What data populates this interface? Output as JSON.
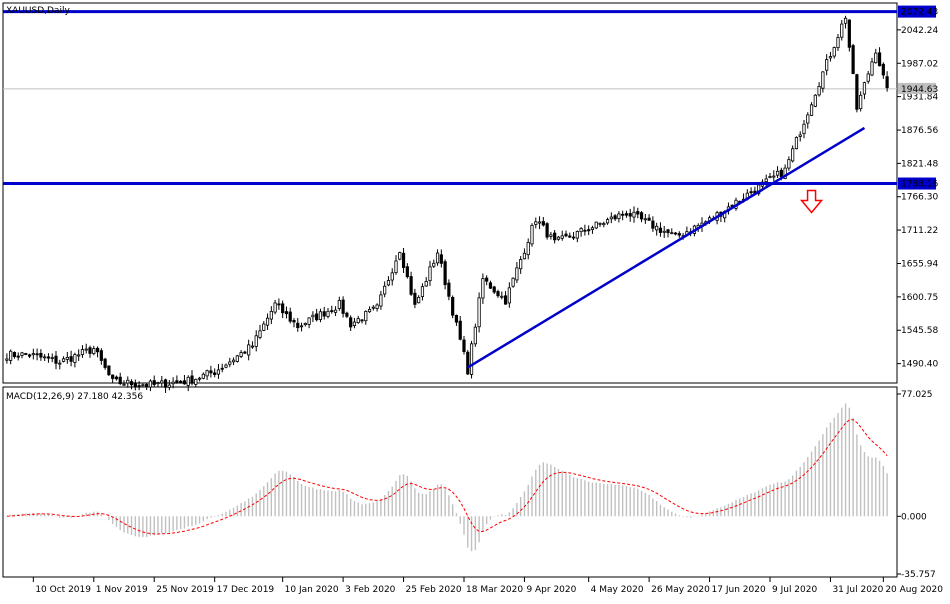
{
  "chart_data": [
    {
      "type": "candlestick",
      "title": "XAUUSD,Daily",
      "price_axis": {
        "ticks": [
          "2042.24",
          "1987.02",
          "1931.84",
          "1876.56",
          "1821.48",
          "1766.30",
          "1711.22",
          "1655.94",
          "1600.75",
          "1545.58",
          "1490.40"
        ],
        "tick_values": [
          2042.24,
          1987.02,
          1931.84,
          1876.56,
          1821.48,
          1766.3,
          1711.22,
          1655.94,
          1600.75,
          1545.58,
          1490.4
        ]
      },
      "price_range": [
        1460.0,
        2085.0
      ],
      "current_price_label": "1944.63",
      "current_price": 1944.63,
      "horizontal_levels": [
        {
          "label": "2072.43",
          "value": 2072.43,
          "color": "#0000cc"
        },
        {
          "label": "1788.16",
          "value": 1788.16,
          "color": "#0000cc"
        }
      ],
      "trendline": {
        "color": "#0000cc",
        "start": {
          "date": "2020-03-19",
          "price": 1484.0
        },
        "end": {
          "date": "2020-08-13",
          "price": 1880.0
        }
      },
      "arrow": {
        "direction": "down",
        "color": "#ff0000",
        "date": "2020-07-24",
        "price": 1780.0
      },
      "x_axis": {
        "tick_labels": [
          "10 Oct 2019",
          "1 Nov 2019",
          "25 Nov 2019",
          "17 Dec 2019",
          "10 Jan 2020",
          "3 Feb 2020",
          "25 Feb 2020",
          "18 Mar 2020",
          "9 Apr 2020",
          "4 May 2020",
          "26 May 2020",
          "17 Jun 2020",
          "9 Jul 2020",
          "31 Jul 2020",
          "20 Aug 2020"
        ]
      },
      "ohlc_anchor_closes": [
        {
          "date": "2019-10-09",
          "close": 1505
        },
        {
          "date": "2019-10-21",
          "close": 1493
        },
        {
          "date": "2019-11-01",
          "close": 1515
        },
        {
          "date": "2019-11-08",
          "close": 1460
        },
        {
          "date": "2019-11-25",
          "close": 1455
        },
        {
          "date": "2019-12-06",
          "close": 1462
        },
        {
          "date": "2019-12-17",
          "close": 1477
        },
        {
          "date": "2019-12-31",
          "close": 1520
        },
        {
          "date": "2020-01-08",
          "close": 1588
        },
        {
          "date": "2020-01-16",
          "close": 1552
        },
        {
          "date": "2020-01-31",
          "close": 1588
        },
        {
          "date": "2020-02-05",
          "close": 1556
        },
        {
          "date": "2020-02-14",
          "close": 1582
        },
        {
          "date": "2020-02-24",
          "close": 1680
        },
        {
          "date": "2020-02-28",
          "close": 1585
        },
        {
          "date": "2020-03-09",
          "close": 1675
        },
        {
          "date": "2020-03-19",
          "close": 1480
        },
        {
          "date": "2020-03-25",
          "close": 1630
        },
        {
          "date": "2020-04-02",
          "close": 1595
        },
        {
          "date": "2020-04-14",
          "close": 1730
        },
        {
          "date": "2020-04-21",
          "close": 1690
        },
        {
          "date": "2020-05-18",
          "close": 1740
        },
        {
          "date": "2020-06-04",
          "close": 1700
        },
        {
          "date": "2020-06-17",
          "close": 1728
        },
        {
          "date": "2020-07-01",
          "close": 1770
        },
        {
          "date": "2020-07-15",
          "close": 1810
        },
        {
          "date": "2020-07-27",
          "close": 1940
        },
        {
          "date": "2020-08-06",
          "close": 2065
        },
        {
          "date": "2020-08-11",
          "close": 1912
        },
        {
          "date": "2020-08-18",
          "close": 2010
        },
        {
          "date": "2020-08-21",
          "close": 1940
        }
      ]
    },
    {
      "type": "macd",
      "title": "MACD(12,26,9) 27.180 42.356",
      "macd_value": 27.18,
      "signal_value": 42.356,
      "axis": {
        "max_label": "77.025",
        "zero_label": "0.000",
        "min_label": "-35.757"
      },
      "y_range": [
        -35.757,
        77.025
      ],
      "histogram_color": "#c0c0c0",
      "signal_color": "#ff0000"
    }
  ]
}
